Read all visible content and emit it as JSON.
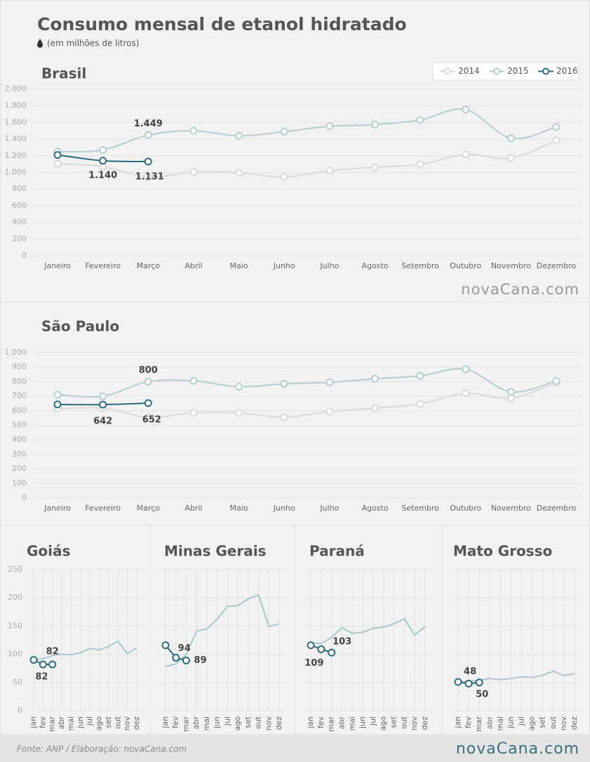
{
  "title": "Consumo mensal de etanol hidratado",
  "subtitle": "(em milhões de litros)",
  "logo": "novaCana.com",
  "source": "Fonte: ANP / Elaboração: novaCana.com",
  "chart_data": [
    {
      "type": "line",
      "title": "Brasil",
      "categories": [
        "Janeiro",
        "Fevereiro",
        "Março",
        "Abril",
        "Maio",
        "Junho",
        "Julho",
        "Agosto",
        "Setembro",
        "Outubro",
        "Novembro",
        "Dezembro"
      ],
      "series": [
        {
          "name": "2014",
          "color": "#d9d9d9",
          "markers": true,
          "values": [
            1105,
            1070,
            945,
            1004,
            996,
            945,
            1021,
            1063,
            1097,
            1215,
            1173,
            1384
          ]
        },
        {
          "name": "2015",
          "color": "#b4cdd3",
          "markers": true,
          "values": [
            1250,
            1270,
            1449,
            1500,
            1440,
            1490,
            1555,
            1575,
            1630,
            1755,
            1410,
            1545
          ],
          "value_labels": [
            null,
            null,
            "1.449",
            null,
            null,
            null,
            null,
            null,
            null,
            null,
            null,
            null
          ]
        },
        {
          "name": "2016",
          "color": "#2d6b7d",
          "markers": true,
          "values": [
            1210,
            1140,
            1131,
            null,
            null,
            null,
            null,
            null,
            null,
            null,
            null,
            null
          ],
          "value_labels": [
            null,
            "1.140",
            "1.131",
            null,
            null,
            null,
            null,
            null,
            null,
            null,
            null,
            null
          ]
        }
      ],
      "ylim": [
        0,
        2000
      ],
      "yticks": [
        0,
        200,
        400,
        600,
        800,
        {
          "value": 1000,
          "label": "1.000"
        },
        {
          "value": 1200,
          "label": "1.200"
        },
        {
          "value": 1400,
          "label": "1.400"
        },
        {
          "value": 1600,
          "label": "1.600"
        },
        {
          "value": 1800,
          "label": "1.800"
        },
        {
          "value": 2000,
          "label": "2.000"
        }
      ],
      "grid": true,
      "legend": "top-right"
    },
    {
      "type": "line",
      "title": "São Paulo",
      "categories": [
        "Janeiro",
        "Fevereiro",
        "Março",
        "Abril",
        "Maio",
        "Junho",
        "Julho",
        "Agosto",
        "Setembro",
        "Outubro",
        "Novembro",
        "Dezembro"
      ],
      "series": [
        {
          "name": "2014",
          "color": "#d9d9d9",
          "markers": true,
          "values": [
            613,
            618,
            555,
            585,
            585,
            555,
            594,
            618,
            647,
            720,
            686,
            792
          ]
        },
        {
          "name": "2015",
          "color": "#b4cdd3",
          "markers": true,
          "values": [
            710,
            700,
            800,
            805,
            765,
            785,
            795,
            820,
            840,
            885,
            730,
            805
          ],
          "value_labels": [
            null,
            null,
            "800",
            null,
            null,
            null,
            null,
            null,
            null,
            null,
            null,
            null
          ]
        },
        {
          "name": "2016",
          "color": "#2d6b7d",
          "markers": true,
          "values": [
            643,
            642,
            652,
            null,
            null,
            null,
            null,
            null,
            null,
            null,
            null,
            null
          ],
          "value_labels": [
            null,
            "642",
            "652",
            null,
            null,
            null,
            null,
            null,
            null,
            null,
            null,
            null
          ]
        }
      ],
      "ylim": [
        0,
        1000
      ],
      "yticks": [
        0,
        100,
        200,
        300,
        400,
        500,
        600,
        700,
        800,
        900,
        {
          "value": 1000,
          "label": "1.000"
        }
      ],
      "grid": true
    },
    {
      "type": "line",
      "title": "Goiás",
      "categories": [
        "jan",
        "fev",
        "mar",
        "abr",
        "mai",
        "jun",
        "jul",
        "ago",
        "set",
        "out",
        "nov",
        "dez"
      ],
      "series": [
        {
          "color": "#a9c6cd",
          "markers": false,
          "values": [
            90,
            92,
            98,
            100,
            99,
            103,
            110,
            108,
            114,
            123,
            101,
            112
          ]
        },
        {
          "color": "#2d6b7d",
          "markers": true,
          "values": [
            90,
            82,
            82,
            null,
            null,
            null,
            null,
            null,
            null,
            null,
            null,
            null
          ],
          "value_labels": [
            null,
            "82",
            "82",
            null,
            null,
            null,
            null,
            null,
            null,
            null,
            null,
            null
          ]
        }
      ],
      "ylim": [
        0,
        250
      ],
      "yticks": [
        0,
        50,
        100,
        150,
        200,
        250
      ],
      "ytick_labels": true,
      "grid": true
    },
    {
      "type": "line",
      "title": "Minas Gerais",
      "categories": [
        "jan",
        "fev",
        "mar",
        "abr",
        "mai",
        "jun",
        "jul",
        "ago",
        "set",
        "out",
        "nov",
        "dez"
      ],
      "series": [
        {
          "color": "#a9c6cd",
          "markers": false,
          "values": [
            78,
            83,
            100,
            141,
            145,
            162,
            185,
            186,
            198,
            205,
            149,
            154
          ]
        },
        {
          "color": "#2d6b7d",
          "markers": true,
          "values": [
            116,
            94,
            89,
            null,
            null,
            null,
            null,
            null,
            null,
            null,
            null,
            null
          ],
          "value_labels": [
            null,
            "94",
            "89",
            null,
            null,
            null,
            null,
            null,
            null,
            null,
            null,
            null
          ]
        }
      ],
      "ylim": [
        0,
        250
      ],
      "yticks": [
        0,
        50,
        100,
        150,
        200,
        250
      ],
      "ytick_labels": false,
      "grid": true
    },
    {
      "type": "line",
      "title": "Paraná",
      "categories": [
        "jan",
        "fev",
        "mar",
        "abr",
        "mai",
        "jun",
        "jul",
        "ago",
        "set",
        "out",
        "nov",
        "dez"
      ],
      "series": [
        {
          "color": "#a9c6cd",
          "markers": false,
          "values": [
            120,
            119,
            130,
            147,
            137,
            139,
            146,
            148,
            154,
            163,
            134,
            149
          ]
        },
        {
          "color": "#2d6b7d",
          "markers": true,
          "values": [
            116,
            109,
            103,
            null,
            null,
            null,
            null,
            null,
            null,
            null,
            null,
            null
          ],
          "value_labels": [
            null,
            "109",
            "103",
            null,
            null,
            null,
            null,
            null,
            null,
            null,
            null,
            null
          ]
        }
      ],
      "ylim": [
        0,
        250
      ],
      "yticks": [
        0,
        50,
        100,
        150,
        200,
        250
      ],
      "ytick_labels": false,
      "grid": true
    },
    {
      "type": "line",
      "title": "Mato Grosso",
      "categories": [
        "jan",
        "fev",
        "mar",
        "abr",
        "mai",
        "jun",
        "jul",
        "ago",
        "set",
        "out",
        "nov",
        "dez"
      ],
      "series": [
        {
          "color": "#a9c6cd",
          "markers": false,
          "values": [
            51,
            52,
            54,
            57,
            55,
            57,
            60,
            59,
            63,
            70,
            62,
            66
          ]
        },
        {
          "color": "#2d6b7d",
          "markers": true,
          "values": [
            51,
            48,
            50,
            null,
            null,
            null,
            null,
            null,
            null,
            null,
            null,
            null
          ],
          "value_labels": [
            null,
            "48",
            "50",
            null,
            null,
            null,
            null,
            null,
            null,
            null,
            null,
            null
          ]
        }
      ],
      "ylim": [
        0,
        250
      ],
      "yticks": [
        0,
        50,
        100,
        150,
        200,
        250
      ],
      "ytick_labels": false,
      "grid": true
    }
  ]
}
